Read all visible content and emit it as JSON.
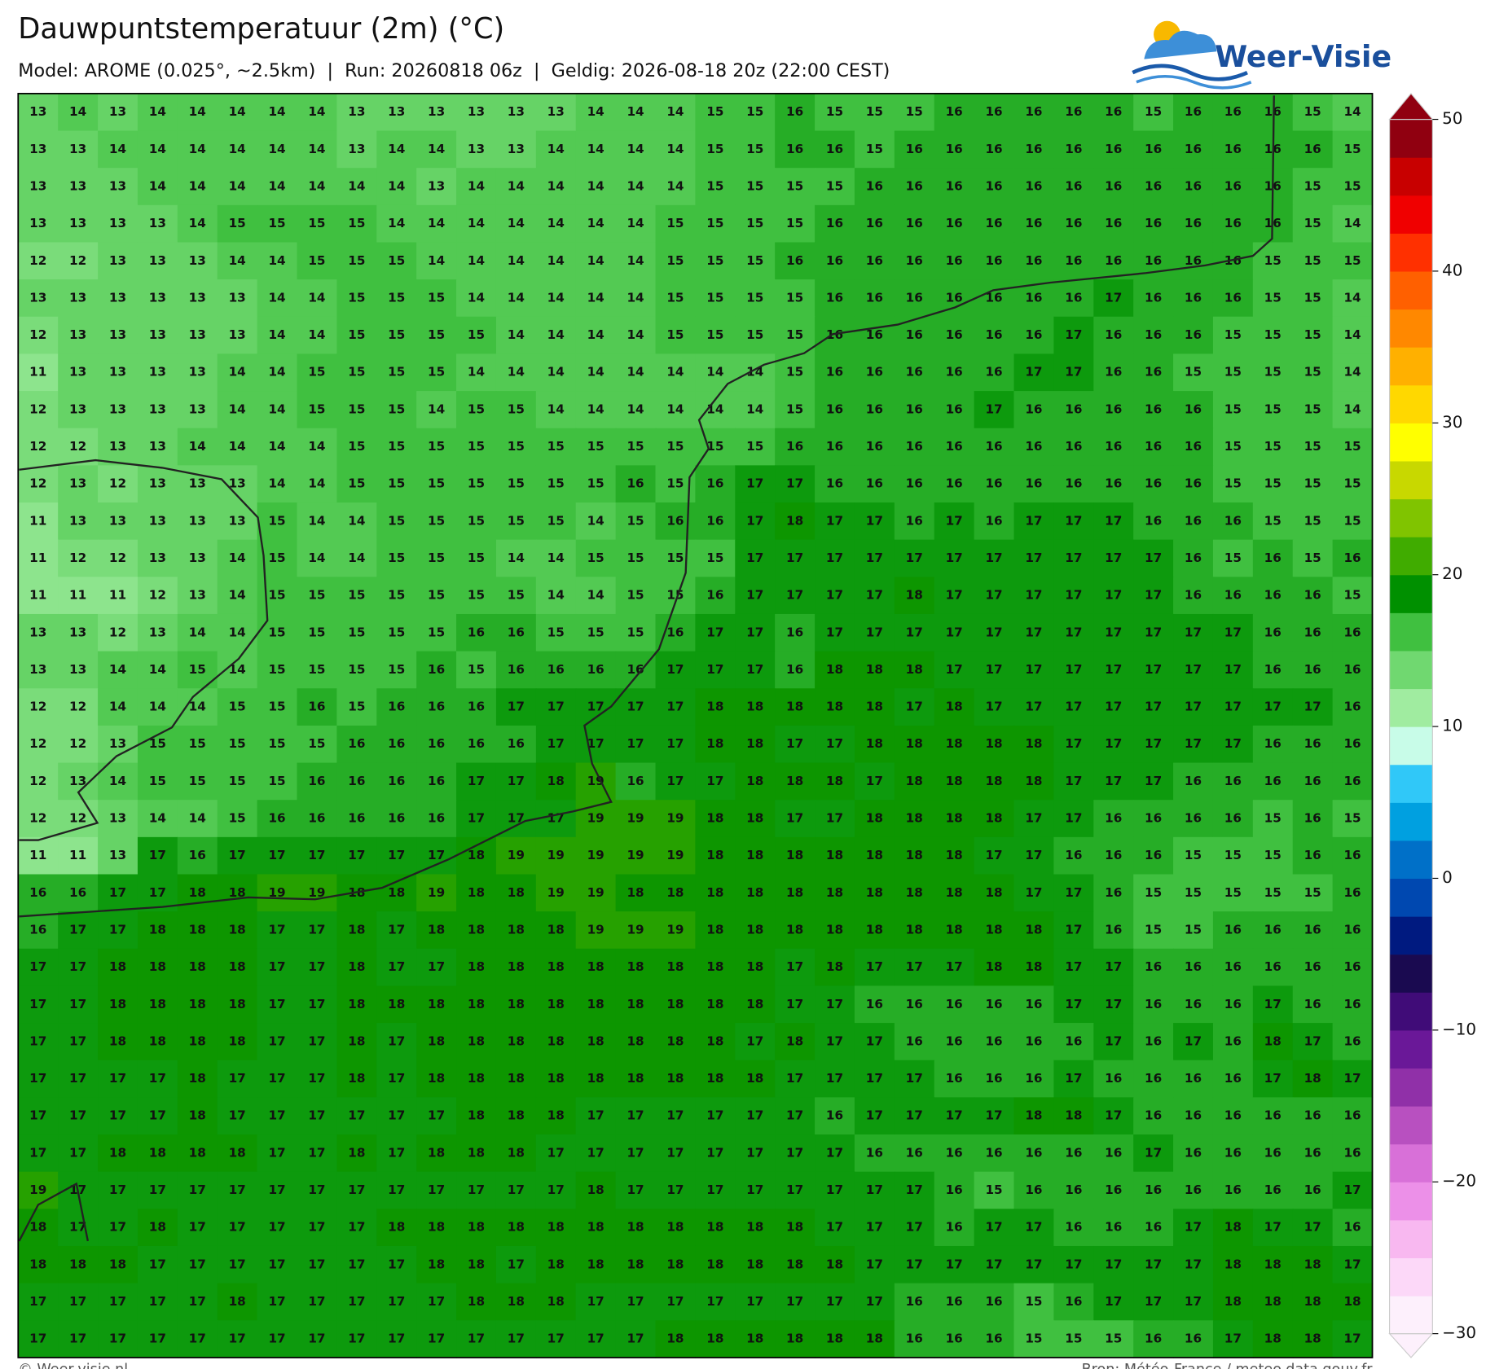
{
  "chart_data": {
    "type": "heatmap",
    "title": "Dauwpuntstemperatuur (2m) (°C)",
    "subtitle": "Model: AROME (0.025°, ~2.5km)  |  Run: 20260818 06z  |  Geldig: 2026-08-18 20z (22:00 CEST)",
    "brand": "Weer-Visie",
    "credit": "© Weer-visie.nl",
    "source": "Bron: Météo-France / meteo.data.gouv.fr",
    "values": [
      [
        13,
        14,
        13,
        14,
        14,
        14,
        14,
        14,
        13,
        13,
        13,
        13,
        13,
        13,
        14,
        14,
        14,
        15,
        15,
        16,
        15,
        15,
        15,
        16,
        16,
        16,
        16,
        16,
        15,
        16,
        16,
        16,
        15,
        14
      ],
      [
        13,
        13,
        14,
        14,
        14,
        14,
        14,
        14,
        13,
        14,
        14,
        13,
        13,
        14,
        14,
        14,
        14,
        15,
        15,
        16,
        16,
        15,
        16,
        16,
        16,
        16,
        16,
        16,
        16,
        16,
        16,
        16,
        16,
        15
      ],
      [
        13,
        13,
        13,
        14,
        14,
        14,
        14,
        14,
        14,
        14,
        13,
        14,
        14,
        14,
        14,
        14,
        14,
        15,
        15,
        15,
        15,
        16,
        16,
        16,
        16,
        16,
        16,
        16,
        16,
        16,
        16,
        16,
        15,
        15
      ],
      [
        13,
        13,
        13,
        13,
        14,
        15,
        15,
        15,
        15,
        14,
        14,
        14,
        14,
        14,
        14,
        14,
        15,
        15,
        15,
        15,
        16,
        16,
        16,
        16,
        16,
        16,
        16,
        16,
        16,
        16,
        16,
        16,
        15,
        14
      ],
      [
        12,
        12,
        13,
        13,
        13,
        14,
        14,
        15,
        15,
        15,
        14,
        14,
        14,
        14,
        14,
        14,
        15,
        15,
        15,
        16,
        16,
        16,
        16,
        16,
        16,
        16,
        16,
        16,
        16,
        16,
        16,
        15,
        15,
        15
      ],
      [
        13,
        13,
        13,
        13,
        13,
        13,
        14,
        14,
        15,
        15,
        15,
        14,
        14,
        14,
        14,
        14,
        15,
        15,
        15,
        15,
        16,
        16,
        16,
        16,
        16,
        16,
        16,
        17,
        16,
        16,
        16,
        15,
        15,
        14
      ],
      [
        12,
        13,
        13,
        13,
        13,
        13,
        14,
        14,
        15,
        15,
        15,
        15,
        14,
        14,
        14,
        14,
        15,
        15,
        15,
        15,
        16,
        16,
        16,
        16,
        16,
        16,
        17,
        16,
        16,
        16,
        15,
        15,
        15,
        14
      ],
      [
        11,
        13,
        13,
        13,
        13,
        14,
        14,
        15,
        15,
        15,
        15,
        14,
        14,
        14,
        14,
        14,
        14,
        14,
        14,
        15,
        16,
        16,
        16,
        16,
        16,
        17,
        17,
        16,
        16,
        15,
        15,
        15,
        15,
        14
      ],
      [
        12,
        13,
        13,
        13,
        13,
        14,
        14,
        15,
        15,
        15,
        14,
        15,
        15,
        14,
        14,
        14,
        14,
        14,
        14,
        15,
        16,
        16,
        16,
        16,
        17,
        16,
        16,
        16,
        16,
        16,
        15,
        15,
        15,
        14
      ],
      [
        12,
        12,
        13,
        13,
        14,
        14,
        14,
        14,
        15,
        15,
        15,
        15,
        15,
        15,
        15,
        15,
        15,
        15,
        15,
        16,
        16,
        16,
        16,
        16,
        16,
        16,
        16,
        16,
        16,
        16,
        15,
        15,
        15,
        15
      ],
      [
        12,
        13,
        12,
        13,
        13,
        13,
        14,
        14,
        15,
        15,
        15,
        15,
        15,
        15,
        15,
        16,
        15,
        16,
        17,
        17,
        16,
        16,
        16,
        16,
        16,
        16,
        16,
        16,
        16,
        16,
        15,
        15,
        15,
        15
      ],
      [
        11,
        13,
        13,
        13,
        13,
        13,
        15,
        14,
        14,
        15,
        15,
        15,
        15,
        15,
        14,
        15,
        16,
        16,
        17,
        18,
        17,
        17,
        16,
        17,
        16,
        17,
        17,
        17,
        16,
        16,
        16,
        15,
        15,
        15
      ],
      [
        11,
        12,
        12,
        13,
        13,
        14,
        15,
        14,
        14,
        15,
        15,
        15,
        14,
        14,
        15,
        15,
        15,
        15,
        17,
        17,
        17,
        17,
        17,
        17,
        17,
        17,
        17,
        17,
        17,
        16,
        15,
        16,
        15,
        16
      ],
      [
        11,
        11,
        11,
        12,
        13,
        14,
        15,
        15,
        15,
        15,
        15,
        15,
        15,
        14,
        14,
        15,
        15,
        16,
        17,
        17,
        17,
        17,
        18,
        17,
        17,
        17,
        17,
        17,
        17,
        16,
        16,
        16,
        16,
        15
      ],
      [
        13,
        13,
        12,
        13,
        14,
        14,
        15,
        15,
        15,
        15,
        15,
        16,
        16,
        15,
        15,
        15,
        16,
        17,
        17,
        16,
        17,
        17,
        17,
        17,
        17,
        17,
        17,
        17,
        17,
        17,
        17,
        16,
        16,
        16
      ],
      [
        13,
        13,
        14,
        14,
        15,
        14,
        15,
        15,
        15,
        15,
        16,
        15,
        16,
        16,
        16,
        16,
        17,
        17,
        17,
        16,
        18,
        18,
        18,
        17,
        17,
        17,
        17,
        17,
        17,
        17,
        17,
        16,
        16,
        16
      ],
      [
        12,
        12,
        14,
        14,
        14,
        15,
        15,
        16,
        15,
        16,
        16,
        16,
        17,
        17,
        17,
        17,
        17,
        18,
        18,
        18,
        18,
        18,
        17,
        18,
        17,
        17,
        17,
        17,
        17,
        17,
        17,
        17,
        17,
        16
      ],
      [
        12,
        12,
        13,
        15,
        15,
        15,
        15,
        15,
        16,
        16,
        16,
        16,
        16,
        17,
        17,
        17,
        17,
        18,
        18,
        17,
        17,
        18,
        18,
        18,
        18,
        18,
        17,
        17,
        17,
        17,
        17,
        16,
        16,
        16
      ],
      [
        12,
        13,
        14,
        15,
        15,
        15,
        15,
        16,
        16,
        16,
        16,
        17,
        17,
        18,
        19,
        16,
        17,
        17,
        18,
        18,
        18,
        17,
        18,
        18,
        18,
        18,
        17,
        17,
        17,
        16,
        16,
        16,
        16,
        16
      ],
      [
        12,
        12,
        13,
        14,
        14,
        15,
        16,
        16,
        16,
        16,
        16,
        17,
        17,
        17,
        19,
        19,
        19,
        18,
        18,
        17,
        17,
        18,
        18,
        18,
        18,
        17,
        17,
        16,
        16,
        16,
        16,
        15,
        16,
        15
      ],
      [
        11,
        11,
        13,
        17,
        16,
        17,
        17,
        17,
        17,
        17,
        17,
        18,
        19,
        19,
        19,
        19,
        19,
        18,
        18,
        18,
        18,
        18,
        18,
        18,
        17,
        17,
        16,
        16,
        16,
        15,
        15,
        15,
        16,
        16
      ],
      [
        16,
        16,
        17,
        17,
        18,
        18,
        19,
        19,
        18,
        18,
        19,
        18,
        18,
        19,
        19,
        18,
        18,
        18,
        18,
        18,
        18,
        18,
        18,
        18,
        18,
        17,
        17,
        16,
        15,
        15,
        15,
        15,
        15,
        16
      ],
      [
        16,
        17,
        17,
        18,
        18,
        18,
        17,
        17,
        18,
        17,
        18,
        18,
        18,
        18,
        19,
        19,
        19,
        18,
        18,
        18,
        18,
        18,
        18,
        18,
        18,
        18,
        17,
        16,
        15,
        15,
        16,
        16,
        16,
        16
      ],
      [
        17,
        17,
        18,
        18,
        18,
        18,
        17,
        17,
        18,
        17,
        17,
        18,
        18,
        18,
        18,
        18,
        18,
        18,
        18,
        17,
        18,
        17,
        17,
        17,
        18,
        18,
        17,
        17,
        16,
        16,
        16,
        16,
        16,
        16
      ],
      [
        17,
        17,
        18,
        18,
        18,
        18,
        17,
        17,
        18,
        18,
        18,
        18,
        18,
        18,
        18,
        18,
        18,
        18,
        18,
        17,
        17,
        16,
        16,
        16,
        16,
        16,
        17,
        17,
        16,
        16,
        16,
        17,
        16,
        16
      ],
      [
        17,
        17,
        18,
        18,
        18,
        18,
        17,
        17,
        18,
        17,
        18,
        18,
        18,
        18,
        18,
        18,
        18,
        18,
        17,
        18,
        17,
        17,
        16,
        16,
        16,
        16,
        16,
        17,
        16,
        17,
        16,
        18,
        17,
        16
      ],
      [
        17,
        17,
        17,
        17,
        18,
        17,
        17,
        17,
        18,
        17,
        18,
        18,
        18,
        18,
        18,
        18,
        18,
        18,
        18,
        17,
        17,
        17,
        17,
        16,
        16,
        16,
        17,
        16,
        16,
        16,
        16,
        17,
        18,
        17
      ],
      [
        17,
        17,
        17,
        17,
        18,
        17,
        17,
        17,
        17,
        17,
        17,
        18,
        18,
        18,
        17,
        17,
        17,
        17,
        17,
        17,
        16,
        17,
        17,
        17,
        17,
        18,
        18,
        17,
        16,
        16,
        16,
        16,
        16,
        16
      ],
      [
        17,
        17,
        18,
        18,
        18,
        18,
        17,
        17,
        18,
        17,
        18,
        18,
        18,
        17,
        17,
        17,
        17,
        17,
        17,
        17,
        17,
        16,
        16,
        16,
        16,
        16,
        16,
        16,
        17,
        16,
        16,
        16,
        16,
        16
      ],
      [
        19,
        17,
        17,
        17,
        17,
        17,
        17,
        17,
        17,
        17,
        17,
        17,
        17,
        17,
        18,
        17,
        17,
        17,
        17,
        17,
        17,
        17,
        17,
        16,
        15,
        16,
        16,
        16,
        16,
        16,
        16,
        16,
        16,
        17
      ],
      [
        18,
        17,
        17,
        18,
        17,
        17,
        17,
        17,
        17,
        18,
        18,
        18,
        18,
        18,
        18,
        18,
        18,
        18,
        18,
        18,
        17,
        17,
        17,
        16,
        17,
        17,
        16,
        16,
        16,
        17,
        18,
        17,
        17,
        16
      ],
      [
        18,
        18,
        18,
        17,
        17,
        17,
        17,
        17,
        17,
        17,
        18,
        18,
        17,
        18,
        18,
        18,
        18,
        18,
        18,
        18,
        18,
        17,
        17,
        17,
        17,
        17,
        17,
        17,
        17,
        17,
        18,
        18,
        18,
        17
      ],
      [
        17,
        17,
        17,
        17,
        17,
        18,
        17,
        17,
        17,
        17,
        17,
        18,
        18,
        18,
        17,
        17,
        17,
        17,
        17,
        17,
        17,
        17,
        16,
        16,
        16,
        15,
        16,
        17,
        17,
        17,
        18,
        18,
        18,
        18
      ],
      [
        17,
        17,
        17,
        17,
        17,
        17,
        17,
        17,
        17,
        17,
        17,
        17,
        17,
        17,
        17,
        17,
        18,
        18,
        18,
        18,
        18,
        18,
        16,
        16,
        16,
        15,
        15,
        15,
        16,
        16,
        17,
        18,
        18,
        17
      ]
    ],
    "colorbar": {
      "lim": [
        -30,
        50
      ],
      "ticks": [
        {
          "value": -30,
          "label": "−30"
        },
        {
          "value": -20,
          "label": "−20"
        },
        {
          "value": -10,
          "label": "−10"
        },
        0,
        10,
        20,
        30,
        40,
        50
      ],
      "colors": [
        "#fdf0fc",
        "#fcd8f8",
        "#f8b8f0",
        "#ec90e8",
        "#d870d8",
        "#b850c0",
        "#9030a8",
        "#6a1898",
        "#400c78",
        "#1a0a50",
        "#001a80",
        "#0048b0",
        "#0070c8",
        "#00a0e0",
        "#30c8f8",
        "#c8fce8",
        "#a0eca0",
        "#70d870",
        "#40c040",
        "#009000",
        "#40ac00",
        "#80c400",
        "#c8d800",
        "#ffff00",
        "#ffd800",
        "#ffb000",
        "#ff8800",
        "#ff6000",
        "#ff3000",
        "#f00000",
        "#c80000",
        "#900010"
      ]
    }
  }
}
